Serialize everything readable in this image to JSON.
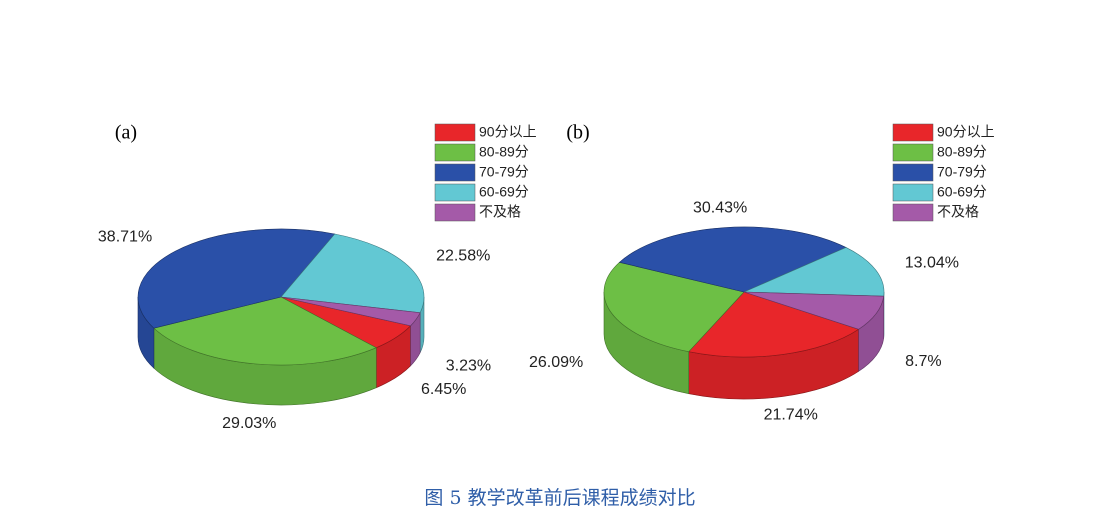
{
  "chart_data": [
    {
      "type": "pie3d",
      "title": "(a)",
      "categories": [
        "90分以上",
        "80-89分",
        "70-79分",
        "60-69分",
        "不及格"
      ],
      "values": [
        6.45,
        29.03,
        38.71,
        22.58,
        3.23
      ],
      "value_labels": [
        "6.45%",
        "29.03%",
        "38.71%",
        "22.58%",
        "3.23%"
      ],
      "colors": [
        "#e8262a",
        "#6dbf45",
        "#2a50a8",
        "#62c8d3",
        "#a45aa8"
      ],
      "legend": "top-right"
    },
    {
      "type": "pie3d",
      "title": "(b)",
      "categories": [
        "90分以上",
        "80-89分",
        "70-79分",
        "60-69分",
        "不及格"
      ],
      "values": [
        21.74,
        26.09,
        30.43,
        13.04,
        8.7
      ],
      "value_labels": [
        "21.74%",
        "26.09%",
        "30.43%",
        "13.04%",
        "8.7%"
      ],
      "colors": [
        "#e8262a",
        "#6dbf45",
        "#2a50a8",
        "#62c8d3",
        "#a45aa8"
      ],
      "legend": "top-right"
    }
  ],
  "caption": "图 5 教学改革前后课程成绩对比"
}
